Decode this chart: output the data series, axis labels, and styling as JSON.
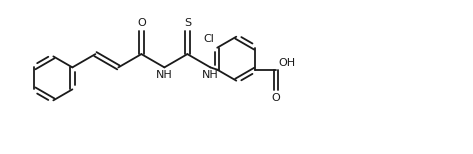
{
  "background": "#ffffff",
  "line_color": "#1a1a1a",
  "line_width": 1.3,
  "font_size": 8.0,
  "fig_width": 4.73,
  "fig_height": 1.54,
  "dpi": 100,
  "xlim": [
    -0.3,
    10.0
  ],
  "ylim": [
    0.2,
    3.5
  ]
}
